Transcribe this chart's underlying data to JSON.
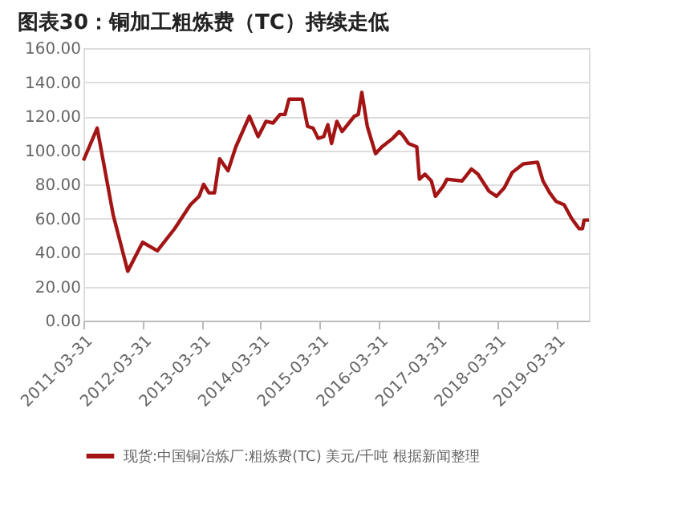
{
  "chart_data": {
    "type": "line",
    "title": "图表30：铜加工粗炼费（TC）持续走低",
    "x": [
      "2011-03-31",
      "2011-06-24",
      "2011-10-01",
      "2011-12-30",
      "2012-03-31",
      "2012-06-30",
      "2012-10-15",
      "2013-01-20",
      "2013-03-15",
      "2013-04-12",
      "2013-05-15",
      "2013-06-18",
      "2013-07-20",
      "2013-09-10",
      "2013-10-28",
      "2014-01-20",
      "2014-03-15",
      "2014-05-03",
      "2014-06-15",
      "2014-07-28",
      "2014-08-28",
      "2014-09-22",
      "2014-12-12",
      "2015-01-15",
      "2015-02-18",
      "2015-03-21",
      "2015-04-24",
      "2015-05-20",
      "2015-06-12",
      "2015-07-15",
      "2015-08-16",
      "2015-10-31",
      "2015-11-24",
      "2015-12-16",
      "2016-01-19",
      "2016-03-10",
      "2016-04-18",
      "2016-06-24",
      "2016-08-03",
      "2016-08-24",
      "2016-09-30",
      "2016-11-20",
      "2016-12-06",
      "2017-01-09",
      "2017-02-18",
      "2017-03-15",
      "2017-05-03",
      "2017-05-25",
      "2017-08-27",
      "2017-10-24",
      "2017-12-03",
      "2018-02-09",
      "2018-03-28",
      "2018-05-15",
      "2018-07-03",
      "2018-09-09",
      "2018-12-06",
      "2019-01-09",
      "2019-02-20",
      "2019-03-31",
      "2019-05-20",
      "2019-07-05",
      "2019-08-20",
      "2019-09-10",
      "2019-09-20",
      "2019-10-20"
    ],
    "series": [
      {
        "name": "现货:中国铜冶炼厂:粗炼费(TC) 美元/千吨 根据新闻整理",
        "color": "#a31515",
        "values": [
          94,
          113,
          62,
          29,
          46,
          41,
          54,
          68,
          73,
          80,
          75,
          75,
          95,
          88,
          102,
          120,
          108,
          117,
          116,
          121,
          121,
          130,
          130,
          114,
          113,
          107,
          108,
          115,
          104,
          117,
          111,
          120,
          121,
          134,
          114,
          98,
          102,
          107,
          111,
          109,
          104,
          102,
          83,
          86,
          82,
          73,
          79,
          83,
          82,
          89,
          86,
          76,
          73,
          78,
          87,
          92,
          93,
          82,
          75,
          70,
          68,
          60,
          54,
          54,
          59,
          59
        ]
      }
    ],
    "xlim": [
      "2011-03-31",
      "2019-10-20"
    ],
    "xticks": [
      "2011-03-31",
      "2012-03-31",
      "2013-03-31",
      "2014-03-31",
      "2015-03-31",
      "2016-03-31",
      "2017-03-31",
      "2018-03-31",
      "2019-03-31"
    ],
    "ylim": [
      0,
      160
    ],
    "yticks": [
      {
        "value": 0,
        "label": "0.00"
      },
      {
        "value": 20,
        "label": "20.00"
      },
      {
        "value": 40,
        "label": "40.00"
      },
      {
        "value": 60,
        "label": "60.00"
      },
      {
        "value": 80,
        "label": "80.00"
      },
      {
        "value": 100,
        "label": "100.00"
      },
      {
        "value": 120,
        "label": "120.00"
      },
      {
        "value": 140,
        "label": "140.00"
      },
      {
        "value": 160,
        "label": "160.00"
      }
    ],
    "grid": "y",
    "legend": "bottom",
    "marker": "none",
    "line_style": "solid"
  }
}
